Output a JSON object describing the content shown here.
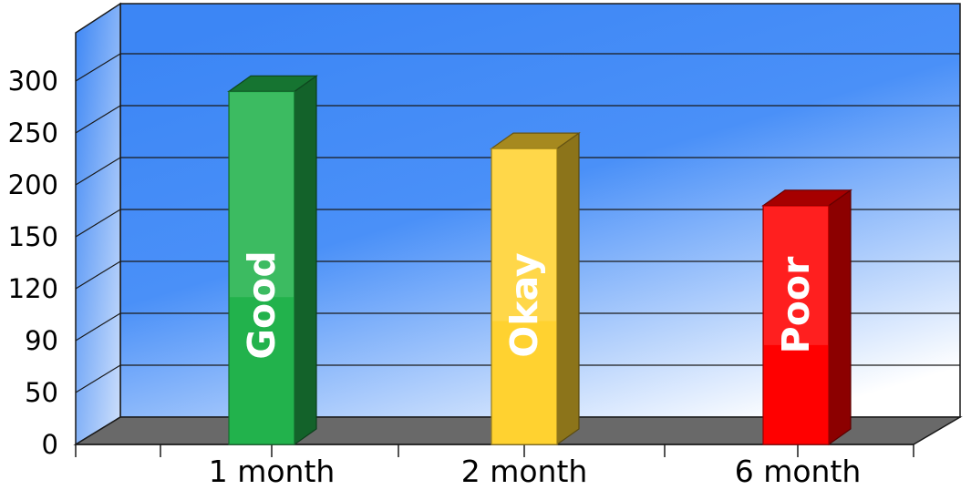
{
  "chart_data": {
    "type": "bar",
    "categories": [
      "1 month",
      "2 month",
      "6 month"
    ],
    "values": [
      290,
      235,
      180
    ],
    "bar_labels": [
      "Good",
      "Okay",
      "Poor"
    ],
    "y_ticks": [
      "0",
      "50",
      "90",
      "120",
      "150",
      "200",
      "250",
      "300"
    ],
    "grid": true,
    "colors": {
      "bars": [
        "#22B24C",
        "#FFD230",
        "#FF0000"
      ],
      "background_top": "#3C86F5",
      "floor": "#696969"
    }
  }
}
